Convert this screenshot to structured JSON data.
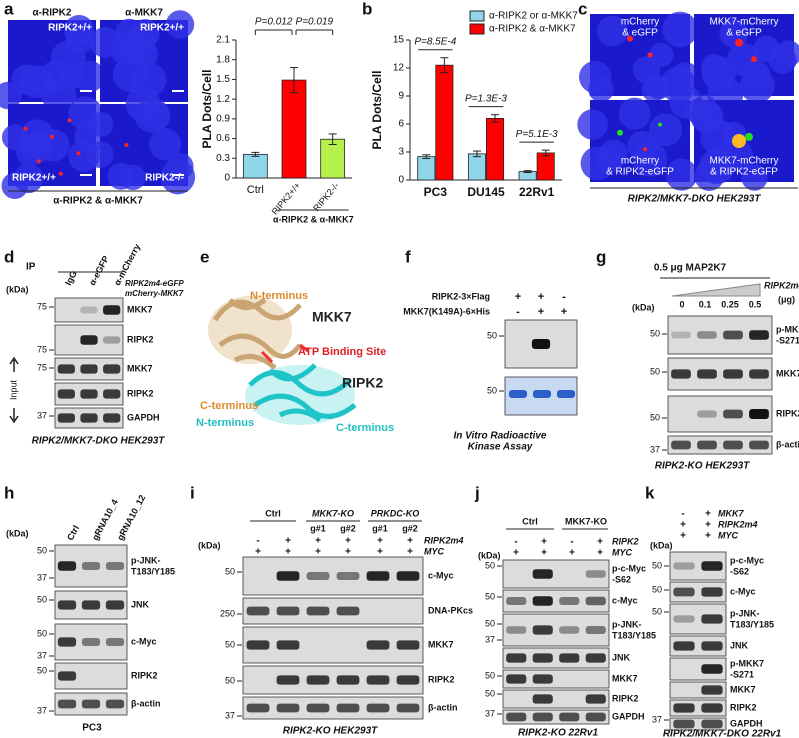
{
  "panel_labels": [
    "a",
    "b",
    "c",
    "d",
    "e",
    "f",
    "g",
    "h",
    "i",
    "j",
    "k"
  ],
  "chart_data": [
    {
      "type": "bar",
      "y_label": "PLA Dots/Cell",
      "categories": [
        "Ctrl",
        "RIPK2+/+",
        "RIPK2-/-"
      ],
      "values": [
        0.36,
        1.49,
        0.59
      ],
      "errors": [
        0.03,
        0.19,
        0.08
      ],
      "colors": [
        "#8fd6ea",
        "#ff0000",
        "#b5f04c"
      ],
      "ylim": [
        0,
        2.1
      ],
      "yticks": [
        0,
        0.3,
        0.6,
        0.9,
        1.2,
        1.5,
        1.8,
        2.1
      ],
      "group_label": "α-RIPK2 & α-MKK7",
      "annotations": [
        "P=0.012",
        "P=0.019"
      ]
    },
    {
      "type": "bar",
      "y_label": "PLA Dots/Cell",
      "categories": [
        "PC3",
        "DU145",
        "22Rv1"
      ],
      "series": [
        {
          "name": "α-RIPK2 or α-MKK7",
          "color": "#8fd6ea",
          "values": [
            2.5,
            2.8,
            0.9
          ],
          "errors": [
            0.2,
            0.3,
            0.1
          ]
        },
        {
          "name": "α-RIPK2 & α-MKK7",
          "color": "#ff0000",
          "values": [
            12.3,
            6.6,
            2.9
          ],
          "errors": [
            0.8,
            0.4,
            0.3
          ]
        }
      ],
      "ylim": [
        0,
        15
      ],
      "yticks": [
        0,
        3,
        6,
        9,
        12,
        15
      ],
      "annotations": [
        "P=8.5E-4",
        "P=1.3E-3",
        "P=5.1E-3"
      ]
    }
  ],
  "a": {
    "antibodies": [
      "α-RIPK2",
      "α-MKK7"
    ],
    "genotypes": [
      "RIPK2+/+",
      "RIPK2+/+",
      "RIPK2+/+",
      "RIPK2-/-"
    ],
    "caption": "α-RIPK2 & α-MKK7"
  },
  "c": {
    "images": [
      [
        "mCherry",
        "& eGFP"
      ],
      [
        "MKK7-mCherry",
        "& eGFP"
      ],
      [
        "mCherry",
        "& RIPK2-eGFP"
      ],
      [
        "MKK7-mCherry",
        "& RIPK2-eGFP"
      ]
    ],
    "caption": "RIPK2/MKK7-DKO HEK293T"
  },
  "d": {
    "ip": "IP",
    "lanes": [
      "IgG",
      "α-eGFP",
      "α-mCherry"
    ],
    "constructs": [
      "RIPK2m4-eGFP",
      "mCherry-MKK7"
    ],
    "kda": "(kDa)",
    "markers": [
      75,
      75,
      75,
      37
    ],
    "blots": [
      "MKK7",
      "RIPK2",
      "MKK7",
      "RIPK2",
      "GAPDH"
    ],
    "input": "Input",
    "caption": "RIPK2/MKK7-DKO HEK293T"
  },
  "e": {
    "labels": [
      "N-terminus",
      "MKK7",
      "ATP Binding Site",
      "RIPK2",
      "C-terminus",
      "N-terminus",
      "C-terminus"
    ]
  },
  "f": {
    "rows": [
      {
        "label": "RIPK2-3×Flag",
        "signs": [
          "+",
          "+",
          "-"
        ]
      },
      {
        "label": "MKK7(K149A)-6×His",
        "signs": [
          "-",
          "+",
          "+"
        ]
      }
    ],
    "markers": [
      50,
      50
    ],
    "caption": [
      "In Vitro Radioactive",
      "Kinase Assay"
    ]
  },
  "g": {
    "header": "0.5 μg MAP2K7",
    "titrant": "RIPK2m4",
    "unit": "(μg)",
    "doses": [
      0,
      0.1,
      0.25,
      0.5
    ],
    "kda": "(kDa)",
    "markers": [
      50,
      50,
      50,
      37
    ],
    "blots": [
      [
        "p-MKK7",
        "-S271"
      ],
      [
        "MKK7"
      ],
      [
        "RIPK2"
      ],
      [
        "β-actin"
      ]
    ],
    "caption": "RIPK2-KO HEK293T"
  },
  "h": {
    "lanes": [
      "Ctrl",
      "gRNA10_4",
      "gRNA10_12"
    ],
    "kda": "(kDa)",
    "markers": [
      50,
      37,
      50,
      50,
      37,
      50,
      37
    ],
    "blots": [
      [
        "p-JNK-",
        "T183/Y185"
      ],
      [
        "JNK"
      ],
      [
        "c-Myc"
      ],
      [
        "RIPK2"
      ],
      [
        "β-actin"
      ]
    ],
    "caption": "PC3"
  },
  "i": {
    "groups": [
      "Ctrl",
      "MKK7-KO",
      "PRKDC-KO"
    ],
    "guides": [
      "g#1",
      "g#2",
      "g#1",
      "g#2"
    ],
    "rows": [
      {
        "label": "RIPK2m4",
        "signs": [
          "-",
          "+",
          "+",
          "+",
          "+",
          "+"
        ]
      },
      {
        "label": "MYC",
        "signs": [
          "+",
          "+",
          "+",
          "+",
          "+",
          "+"
        ]
      }
    ],
    "kda": "(kDa)",
    "markers": [
      50,
      250,
      50,
      50,
      37
    ],
    "blots": [
      "c-Myc",
      "DNA-PKcs",
      "MKK7",
      "RIPK2",
      "β-actin"
    ],
    "caption": "RIPK2-KO HEK293T"
  },
  "j": {
    "groups": [
      "Ctrl",
      "MKK7-KO"
    ],
    "rows": [
      {
        "label": "RIPK2",
        "signs": [
          "-",
          "+",
          "-",
          "+"
        ]
      },
      {
        "label": "MYC",
        "signs": [
          "+",
          "+",
          "+",
          "+"
        ]
      }
    ],
    "kda": "(kDa)",
    "markers": [
      50,
      50,
      50,
      37,
      50,
      50,
      37
    ],
    "blots": [
      [
        "p-c-Myc",
        "-S62"
      ],
      [
        "c-Myc"
      ],
      [
        "p-JNK-",
        "T183/Y185"
      ],
      [
        "JNK"
      ],
      [
        "MKK7"
      ],
      [
        "RIPK2"
      ],
      [
        "GAPDH"
      ]
    ],
    "caption": "RIPK2-KO 22Rv1"
  },
  "k": {
    "rows": [
      {
        "label": "MKK7",
        "signs": [
          "-",
          "+"
        ]
      },
      {
        "label": "RIPK2m4",
        "signs": [
          "+",
          "+"
        ]
      },
      {
        "label": "MYC",
        "signs": [
          "+",
          "+"
        ]
      }
    ],
    "kda": "(kDa)",
    "markers": [
      50,
      50,
      50,
      37
    ],
    "blots": [
      [
        "p-c-Myc",
        "-S62"
      ],
      [
        "c-Myc"
      ],
      [
        "p-JNK-",
        "T183/Y185"
      ],
      [
        "JNK"
      ],
      [
        "p-MKK7",
        "-S271"
      ],
      [
        "MKK7"
      ],
      [
        "RIPK2"
      ],
      [
        "GAPDH"
      ]
    ],
    "caption": "RIPK2/MKK7-DKO 22Rv1"
  }
}
